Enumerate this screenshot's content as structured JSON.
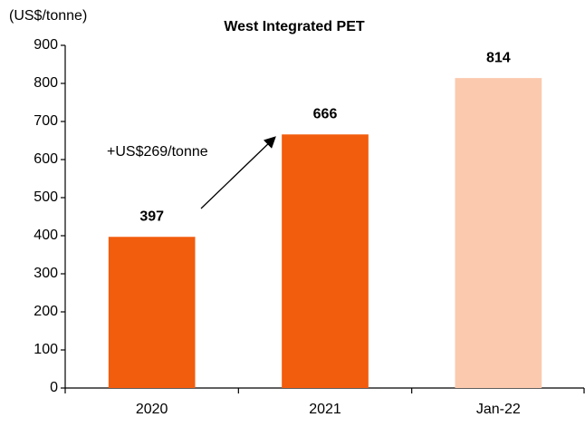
{
  "chart_data": {
    "type": "bar",
    "title": "West Integrated PET",
    "y_label": "(US$/tonne)",
    "categories": [
      "2020",
      "2021",
      "Jan-22"
    ],
    "values": [
      397,
      666,
      814
    ],
    "colors": [
      "#f25c0d",
      "#f25c0d",
      "#fbc9ad"
    ],
    "ylim": [
      0,
      900
    ],
    "yticks": [
      0,
      100,
      200,
      300,
      400,
      500,
      600,
      700,
      800,
      900
    ],
    "annotation": "+US$269/tonne",
    "grid": false
  }
}
